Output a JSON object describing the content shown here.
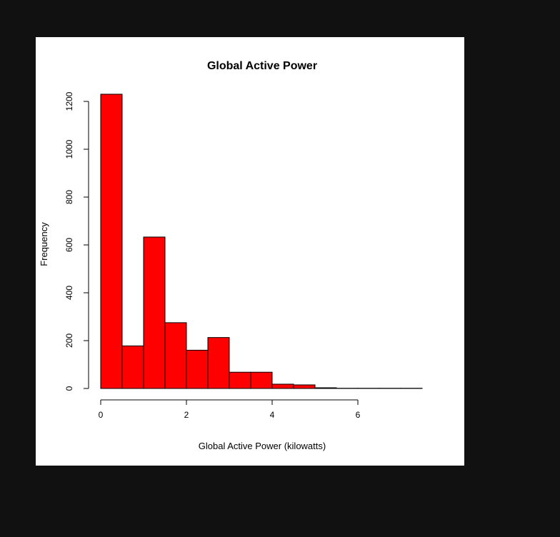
{
  "chart_data": {
    "type": "bar",
    "title": "Global Active Power",
    "xlabel": "Global Active Power (kilowatts)",
    "ylabel": "Frequency",
    "bin_edges": [
      0,
      0.5,
      1,
      1.5,
      2,
      2.5,
      3,
      3.5,
      4,
      4.5,
      5,
      5.5,
      6,
      6.5,
      7,
      7.5
    ],
    "values": [
      1230,
      178,
      633,
      275,
      160,
      213,
      68,
      68,
      18,
      15,
      3,
      1,
      1,
      1,
      1
    ],
    "xlim": [
      0,
      7.5
    ],
    "ylim": [
      0,
      1200
    ],
    "x_ticks": [
      0,
      2,
      4,
      6
    ],
    "y_ticks": [
      0,
      200,
      400,
      600,
      800,
      1000,
      1200
    ],
    "bar_color": "#ff0000",
    "bar_edge_color": "#000000",
    "grid": false,
    "legend": "none"
  }
}
